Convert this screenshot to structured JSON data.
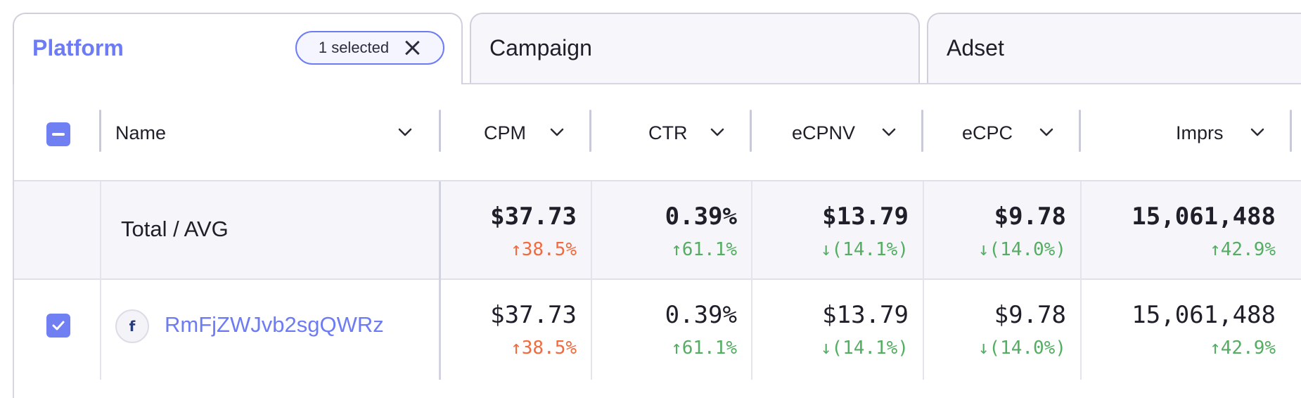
{
  "tabs": [
    {
      "label": "Platform",
      "active": true,
      "chip": "1 selected"
    },
    {
      "label": "Campaign",
      "active": false
    },
    {
      "label": "Adset",
      "active": false
    }
  ],
  "columns": {
    "name": "Name",
    "cpm": "CPM",
    "ctr": "CTR",
    "ecpnv": "eCPNV",
    "ecpc": "eCPC",
    "imprs": "Imprs"
  },
  "total": {
    "label": "Total / AVG",
    "cpm": {
      "value": "$37.73",
      "change": "↑38.5%"
    },
    "ctr": {
      "value": "0.39%",
      "change": "↑61.1%"
    },
    "ecpnv": {
      "value": "$13.79",
      "change": "↓(14.1%)"
    },
    "ecpc": {
      "value": "$9.78",
      "change": "↓(14.0%)"
    },
    "imprs": {
      "value": "15,061,488",
      "change": "↑42.9%"
    }
  },
  "rows": [
    {
      "platform_icon": "facebook-icon",
      "name": "RmFjZWJvb2sgQWRz",
      "cpm": {
        "value": "$37.73",
        "change": "↑38.5%"
      },
      "ctr": {
        "value": "0.39%",
        "change": "↑61.1%"
      },
      "ecpnv": {
        "value": "$13.79",
        "change": "↓(14.1%)"
      },
      "ecpc": {
        "value": "$9.78",
        "change": "↓(14.0%)"
      },
      "imprs": {
        "value": "15,061,488",
        "change": "↑42.9%"
      }
    }
  ],
  "colors": {
    "accent": "#6d7cf4",
    "increase_bad": "#f26a3d",
    "increase_good": "#54ad62",
    "decrease_good": "#54ad62"
  }
}
